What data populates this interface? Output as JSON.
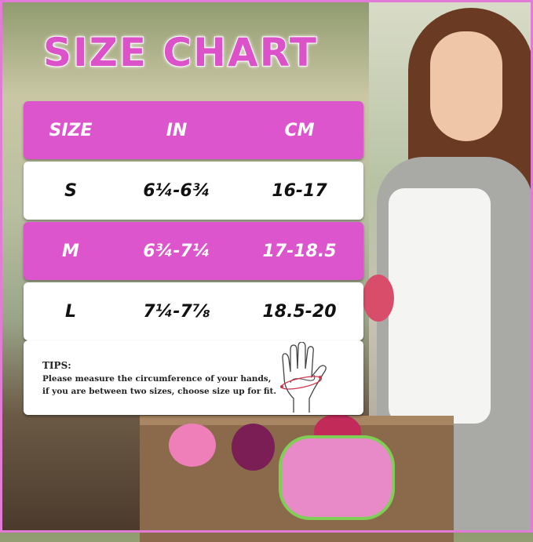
{
  "title": "SIZE CHART",
  "accent_color": "#dd55cc",
  "table": {
    "headers": [
      "SIZE",
      "IN",
      "CM"
    ],
    "rows": [
      {
        "size": "S",
        "in": "6¼-6¾",
        "cm": "16-17"
      },
      {
        "size": "M",
        "in": "6¾-7¼",
        "cm": "17-18.5"
      },
      {
        "size": "L",
        "in": "7¼-7⅞",
        "cm": "18.5-20"
      }
    ]
  },
  "tips": {
    "label": "TIPS:",
    "line1": "Please measure the circumference of your hands,",
    "line2": "if you are between two sizes, choose size up for fit.",
    "icon": "hand-measure-icon"
  }
}
